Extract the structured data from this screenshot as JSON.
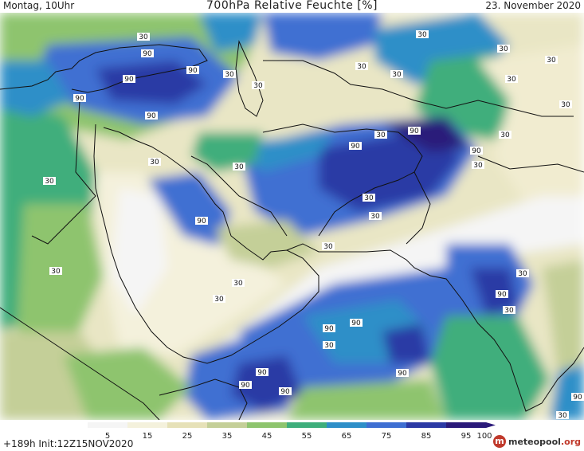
{
  "header": {
    "left": "Montag, 10Uhr",
    "title": "700hPa Relative Feuchte [%]",
    "right": "23. November 2020"
  },
  "footer": {
    "run": "+189h  Init:12Z15NOV2020",
    "logo_name": "meteopool",
    "logo_tld": ".org"
  },
  "colorbar": {
    "ticks": [
      "5",
      "15",
      "25",
      "35",
      "45",
      "55",
      "65",
      "75",
      "85",
      "95",
      "100"
    ],
    "colors": [
      "#f5f5f5",
      "#f4f1dc",
      "#e6e1b8",
      "#c4cf98",
      "#8ec46e",
      "#3fae7c",
      "#2e8fc8",
      "#3f6fd2",
      "#2c3aa5",
      "#2b1a7a"
    ]
  },
  "map_labels": {
    "turkey_1": "30",
    "turkey_2": "90",
    "turkey_3": "90",
    "turkey_4": "90",
    "turkey_5": "90",
    "turkey_6": "90",
    "caspian_1": "30",
    "caspian_2": "30",
    "central_asia_1": "30",
    "central_asia_2": "30",
    "central_asia_3": "30",
    "east_1": "30",
    "east_2": "30",
    "east_3": "30",
    "east_4": "30",
    "east_5": "30",
    "iran_1": "90",
    "iran_2": "30",
    "iran_3": "90",
    "iran_4": "30",
    "iran_5": "90",
    "north_africa_1": "30",
    "arabia_1": "30",
    "arabia_2": "90",
    "arabia_3": "30",
    "gulf_1": "30",
    "oman_1": "30",
    "oman_2": "30",
    "red_sea_1": "30",
    "sudan_1": "30",
    "horn_1": "30",
    "india_1": "30",
    "india_2": "90",
    "india_3": "30",
    "arabian_sea_1": "90",
    "arabian_sea_2": "90",
    "arabian_sea_3": "30",
    "arabian_sea_4": "90",
    "somali_1": "90",
    "somali_2": "90",
    "somali_3": "90",
    "se_1": "30",
    "se_2": "90"
  }
}
